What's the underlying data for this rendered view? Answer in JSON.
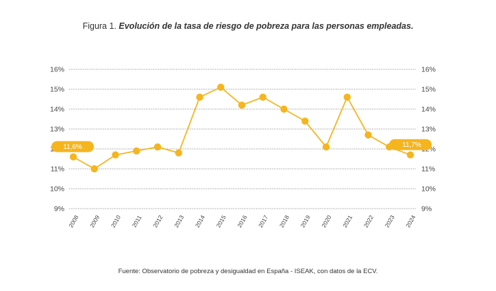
{
  "header": {
    "title_lead": "Figura 1. ",
    "title_main": "Evolución de la tasa de riesgo de pobreza para las personas empleadas."
  },
  "footer": {
    "source": "Fuente: Observatorio de pobreza y desigualdad en España - ISEAK, con datos de la ECV."
  },
  "colors": {
    "series": "#F5B51F",
    "grid": "#555555"
  },
  "chart_data": {
    "type": "line",
    "title": "Evolución de la tasa de riesgo de pobreza para las personas empleadas.",
    "xlabel": "",
    "ylabel": "",
    "x": [
      "2008",
      "2009",
      "2010",
      "2011",
      "2012",
      "2013",
      "2014",
      "2015",
      "2016",
      "2017",
      "2018",
      "2019",
      "2020",
      "2021",
      "2022",
      "2023",
      "2024"
    ],
    "series": [
      {
        "values": [
          11.6,
          11.0,
          11.7,
          11.9,
          12.1,
          11.8,
          14.6,
          15.1,
          14.2,
          14.6,
          14.0,
          13.4,
          12.1,
          14.6,
          12.7,
          12.1,
          11.7
        ]
      }
    ],
    "ylim": [
      9,
      16
    ],
    "yticks": [
      "16%",
      "15%",
      "14%",
      "13%",
      "12%",
      "11%",
      "10%",
      "9%"
    ],
    "ytick_values": [
      16,
      15,
      14,
      13,
      12,
      11,
      10,
      9
    ],
    "grid": true,
    "grid_style": "dotted-horizontal",
    "y_axis_both_sides": true,
    "annotations": [
      {
        "text": "11,6%",
        "year": "2008",
        "value": 11.6,
        "side": "left"
      },
      {
        "text": "11,7%",
        "year": "2024",
        "value": 11.7,
        "side": "right"
      }
    ]
  }
}
